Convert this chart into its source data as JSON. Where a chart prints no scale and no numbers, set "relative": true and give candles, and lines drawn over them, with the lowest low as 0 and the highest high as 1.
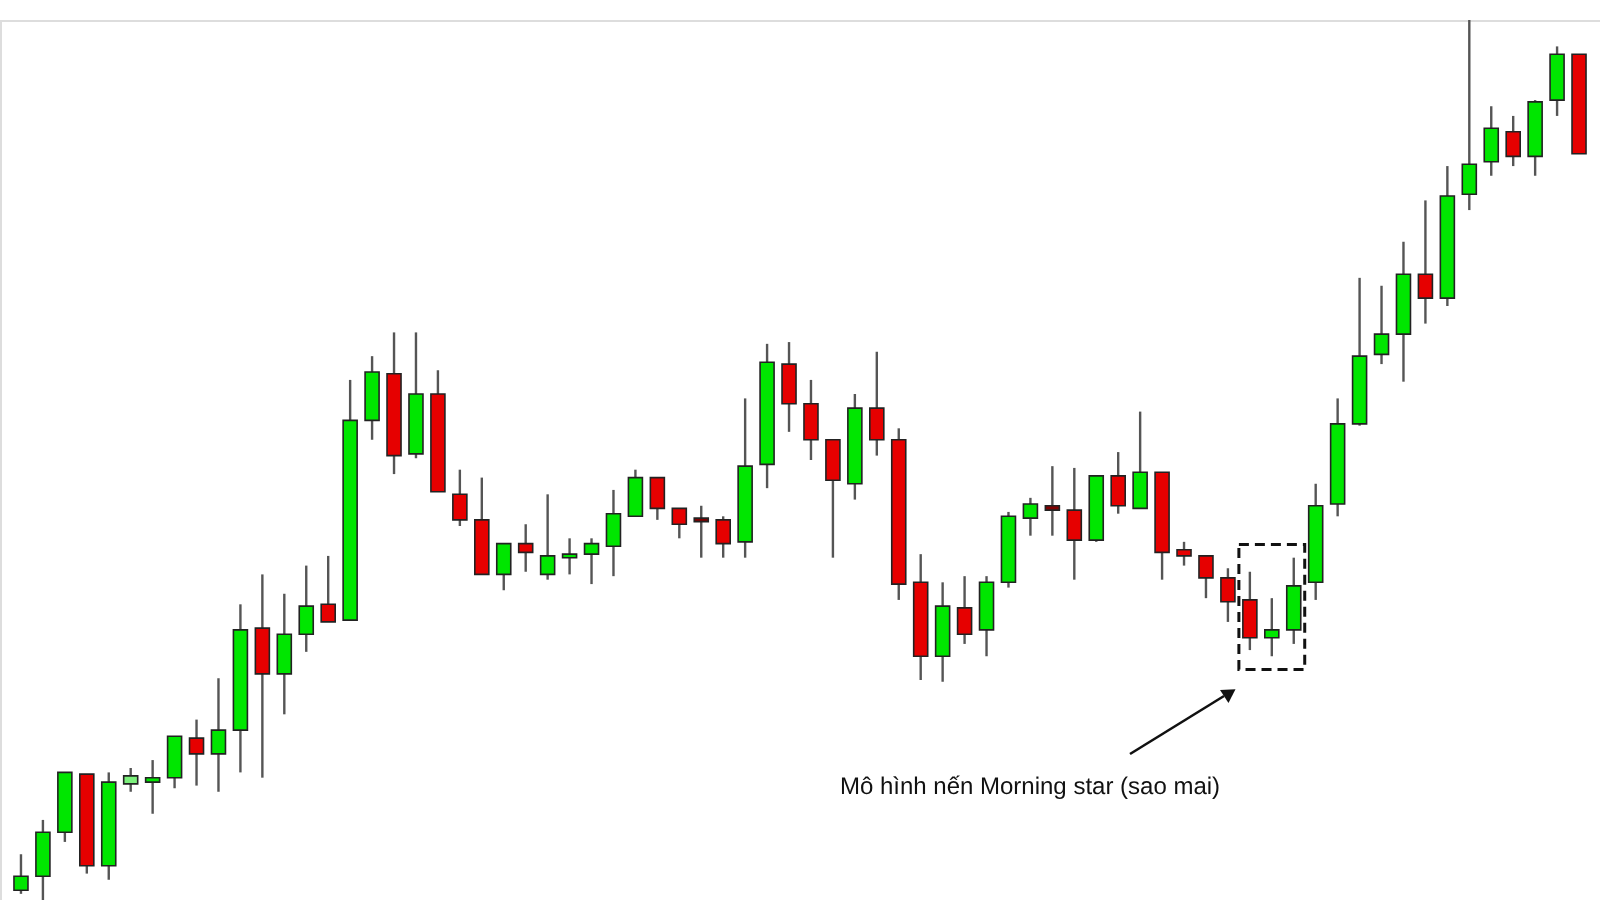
{
  "chart_data": {
    "type": "candlestick",
    "relative": true,
    "categories": [
      null,
      null,
      null,
      null,
      null,
      null,
      null,
      null,
      null,
      null,
      null,
      null,
      null,
      null,
      null,
      null,
      null,
      null,
      null,
      null,
      null,
      null,
      null,
      null,
      null,
      null,
      null,
      null,
      null,
      null,
      null,
      null,
      null,
      null,
      null,
      null,
      null,
      null,
      null,
      null,
      null,
      null,
      null,
      null,
      null,
      null,
      null,
      null,
      null,
      null,
      null,
      null,
      null,
      null,
      null,
      null,
      null,
      null,
      null,
      null,
      null,
      null,
      null,
      null,
      null,
      null,
      null,
      null,
      null,
      null,
      null,
      null
    ],
    "ohlc": [
      [
        0.011,
        0.052,
        0.007,
        0.027
      ],
      [
        0.027,
        0.091,
        0,
        0.077
      ],
      [
        0.077,
        0.145,
        0.066,
        0.145
      ],
      [
        0.143,
        0.143,
        0.03,
        0.039
      ],
      [
        0.039,
        0.145,
        0.023,
        0.134
      ],
      [
        0.132,
        0.15,
        0.123,
        0.141
      ],
      [
        0.134,
        0.159,
        0.098,
        0.139
      ],
      [
        0.139,
        0.186,
        0.127,
        0.186
      ],
      [
        0.184,
        0.205,
        0.13,
        0.166
      ],
      [
        0.166,
        0.252,
        0.123,
        0.193
      ],
      [
        0.193,
        0.336,
        0.145,
        0.307
      ],
      [
        0.309,
        0.37,
        0.139,
        0.257
      ],
      [
        0.257,
        0.348,
        0.211,
        0.302
      ],
      [
        0.302,
        0.38,
        0.282,
        0.334
      ],
      [
        0.336,
        0.391,
        0.316,
        0.316
      ],
      [
        0.318,
        0.591,
        0.318,
        0.545
      ],
      [
        0.545,
        0.618,
        0.523,
        0.6
      ],
      [
        0.598,
        0.645,
        0.484,
        0.505
      ],
      [
        0.507,
        0.645,
        0.502,
        0.575
      ],
      [
        0.575,
        0.602,
        0.464,
        0.464
      ],
      [
        0.461,
        0.489,
        0.425,
        0.432
      ],
      [
        0.432,
        0.48,
        0.37,
        0.37
      ],
      [
        0.37,
        0.405,
        0.352,
        0.405
      ],
      [
        0.405,
        0.427,
        0.373,
        0.395
      ],
      [
        0.37,
        0.461,
        0.364,
        0.391
      ],
      [
        0.389,
        0.411,
        0.37,
        0.393
      ],
      [
        0.393,
        0.411,
        0.359,
        0.405
      ],
      [
        0.402,
        0.466,
        0.368,
        0.439
      ],
      [
        0.436,
        0.489,
        0.436,
        0.48
      ],
      [
        0.48,
        0.48,
        0.432,
        0.445
      ],
      [
        0.445,
        0.445,
        0.411,
        0.427
      ],
      [
        0.434,
        0.448,
        0.389,
        0.43
      ],
      [
        0.432,
        0.436,
        0.389,
        0.405
      ],
      [
        0.407,
        0.57,
        0.389,
        0.493
      ],
      [
        0.495,
        0.632,
        0.468,
        0.611
      ],
      [
        0.609,
        0.634,
        0.532,
        0.564
      ],
      [
        0.564,
        0.591,
        0.5,
        0.523
      ],
      [
        0.523,
        0.523,
        0.389,
        0.477
      ],
      [
        0.473,
        0.575,
        0.455,
        0.559
      ],
      [
        0.559,
        0.623,
        0.505,
        0.523
      ],
      [
        0.523,
        0.536,
        0.341,
        0.359
      ],
      [
        0.361,
        0.393,
        0.25,
        0.277
      ],
      [
        0.277,
        0.361,
        0.248,
        0.334
      ],
      [
        0.332,
        0.368,
        0.291,
        0.302
      ],
      [
        0.307,
        0.368,
        0.277,
        0.361
      ],
      [
        0.361,
        0.441,
        0.355,
        0.436
      ],
      [
        0.434,
        0.457,
        0.414,
        0.45
      ],
      [
        0.448,
        0.493,
        0.414,
        0.443
      ],
      [
        0.443,
        0.491,
        0.364,
        0.409
      ],
      [
        0.409,
        0.482,
        0.407,
        0.482
      ],
      [
        0.482,
        0.509,
        0.439,
        0.448
      ],
      [
        0.445,
        0.555,
        0.445,
        0.486
      ],
      [
        0.486,
        0.486,
        0.364,
        0.395
      ],
      [
        0.398,
        0.407,
        0.38,
        0.391
      ],
      [
        0.391,
        0.391,
        0.343,
        0.366
      ],
      [
        0.366,
        0.377,
        0.316,
        0.339
      ],
      [
        0.341,
        0.373,
        0.284,
        0.298
      ],
      [
        0.298,
        0.343,
        0.277,
        0.307
      ],
      [
        0.307,
        0.389,
        0.291,
        0.357
      ],
      [
        0.361,
        0.473,
        0.341,
        0.448
      ],
      [
        0.45,
        0.57,
        0.436,
        0.541
      ],
      [
        0.541,
        0.707,
        0.539,
        0.618
      ],
      [
        0.62,
        0.698,
        0.609,
        0.643
      ],
      [
        0.643,
        0.748,
        0.589,
        0.711
      ],
      [
        0.711,
        0.795,
        0.655,
        0.684
      ],
      [
        0.684,
        0.834,
        0.675,
        0.8
      ],
      [
        0.802,
        1,
        0.784,
        0.836
      ],
      [
        0.839,
        0.902,
        0.823,
        0.877
      ],
      [
        0.873,
        0.891,
        0.834,
        0.845
      ],
      [
        0.845,
        0.909,
        0.823,
        0.907
      ],
      [
        0.909,
        0.97,
        0.891,
        0.961
      ],
      [
        0.961,
        0.961,
        0.848,
        0.848
      ]
    ],
    "colors": [
      "#00e600",
      "#00e600",
      "#00e600",
      "#e60000",
      "#00e600",
      "#7cf07c",
      "#00e600",
      "#00e600",
      "#e60000",
      "#00e600",
      "#00e600",
      "#e60000",
      "#00e600",
      "#00e600",
      "#e60000",
      "#00e600",
      "#00e600",
      "#e60000",
      "#00e600",
      "#e60000",
      "#e60000",
      "#e60000",
      "#00e600",
      "#e60000",
      "#00e600",
      "#00e600",
      "#00e600",
      "#00e600",
      "#00e600",
      "#e60000",
      "#e60000",
      "#800000",
      "#e60000",
      "#00e600",
      "#00e600",
      "#e60000",
      "#e60000",
      "#e60000",
      "#00e600",
      "#e60000",
      "#e60000",
      "#e60000",
      "#00e600",
      "#e60000",
      "#00e600",
      "#00e600",
      "#00e600",
      "#800000",
      "#e60000",
      "#00e600",
      "#e60000",
      "#00e600",
      "#e60000",
      "#e60000",
      "#e60000",
      "#e60000",
      "#e60000",
      "#00e600",
      "#00e600",
      "#00e600",
      "#00e600",
      "#00e600",
      "#00e600",
      "#00e600",
      "#e60000",
      "#00e600",
      "#00e600",
      "#00e600",
      "#e60000",
      "#00e600",
      "#00e600",
      "#e60000"
    ],
    "annotations": [
      "Mô hình nến Morning star (sao mai)"
    ]
  }
}
